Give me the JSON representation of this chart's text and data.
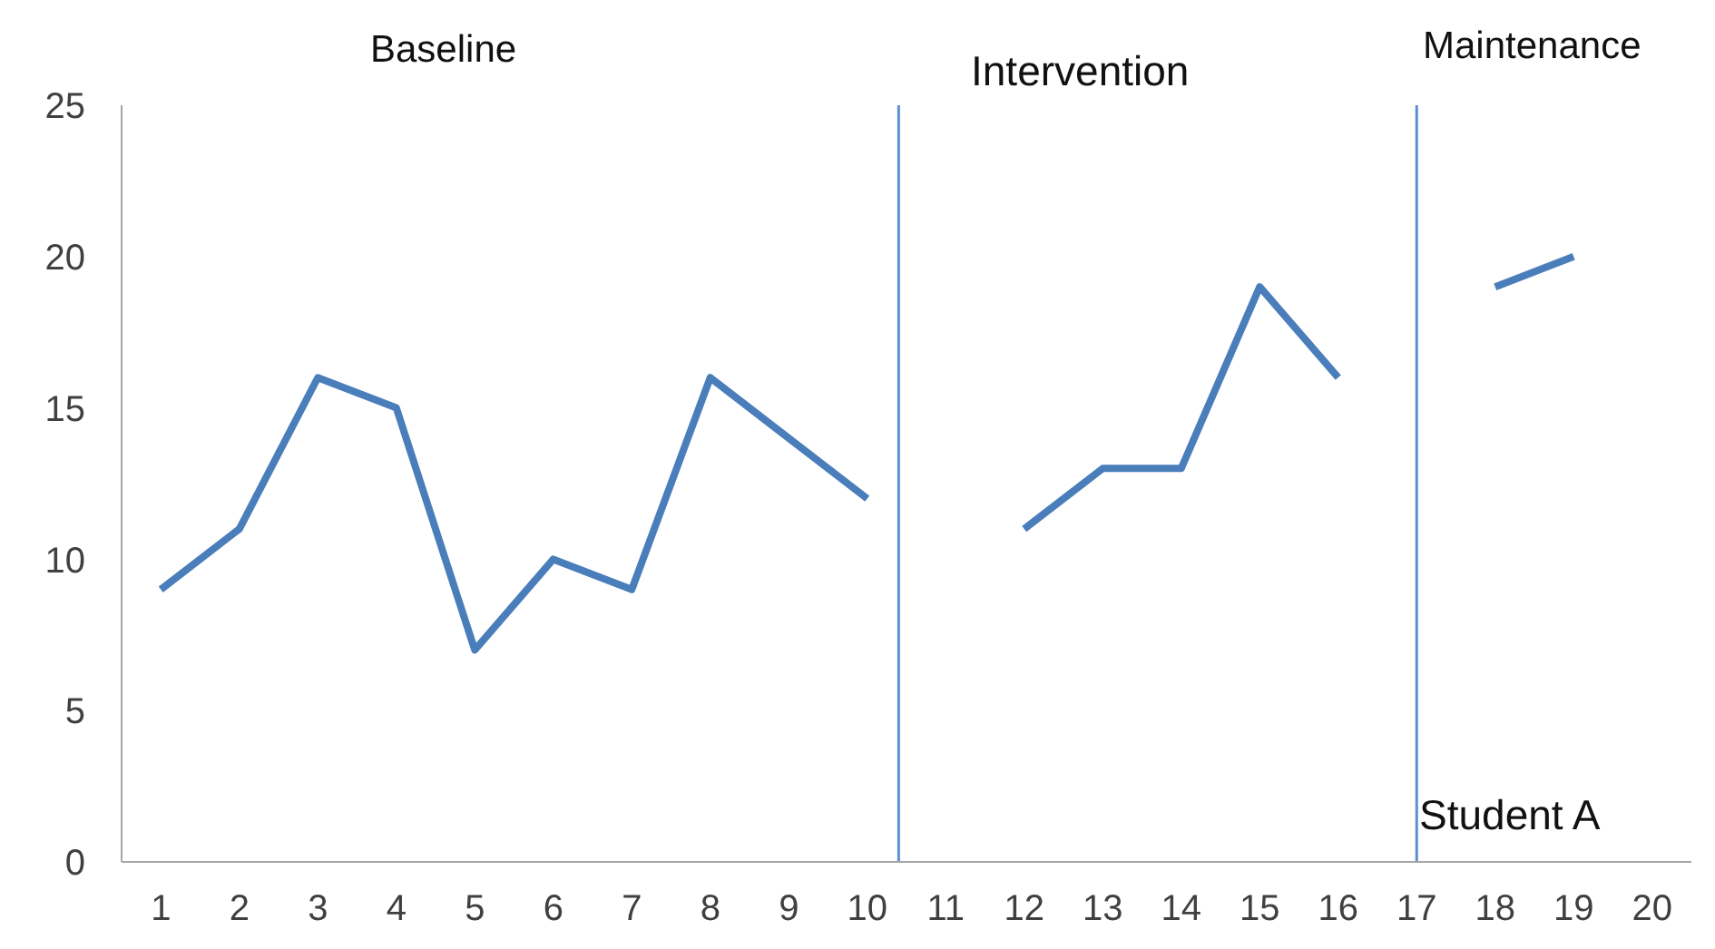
{
  "chart_data": {
    "type": "line",
    "x": [
      1,
      2,
      3,
      4,
      5,
      6,
      7,
      8,
      9,
      10,
      11,
      12,
      13,
      14,
      15,
      16,
      17,
      18,
      19
    ],
    "series": [
      {
        "color": "#4a7ebb",
        "values": [
          9,
          11,
          16,
          15,
          7,
          10,
          9,
          16,
          14,
          12,
          null,
          11,
          13,
          13,
          19,
          16,
          null,
          19,
          20
        ]
      }
    ],
    "xlim": [
      0.5,
      20.5
    ],
    "xticks": [
      1,
      2,
      3,
      4,
      5,
      6,
      7,
      8,
      9,
      10,
      11,
      12,
      13,
      14,
      15,
      16,
      17,
      18,
      19,
      20
    ],
    "ylim": [
      0,
      25
    ],
    "yticks": [
      0,
      5,
      10,
      15,
      20,
      25
    ],
    "grid": false,
    "marker": "none",
    "line_style": "solid",
    "ref_lines": [
      {
        "axis": "x",
        "value": 10.4,
        "color": "#5b8fd0"
      },
      {
        "axis": "x",
        "value": 17,
        "color": "#5b8fd0"
      }
    ],
    "annotations": [
      "Baseline",
      "Intervention",
      "Maintenance",
      "Student A"
    ]
  }
}
